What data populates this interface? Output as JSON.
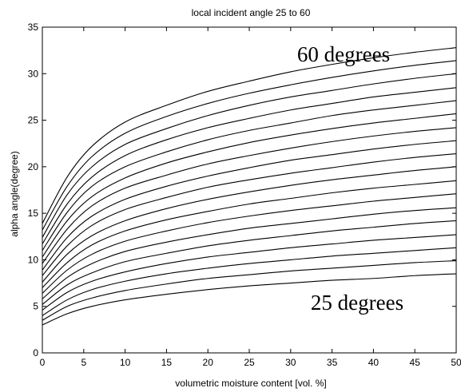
{
  "chart_data": {
    "type": "line",
    "title": "local incident angle 25 to 60",
    "xlabel": "volumetric moisture content [vol. %]",
    "ylabel": "alpha angle(degree)",
    "xlim": [
      0,
      50
    ],
    "ylim": [
      0,
      35
    ],
    "xticks": [
      0,
      5,
      10,
      15,
      20,
      25,
      30,
      35,
      40,
      45,
      50
    ],
    "yticks": [
      0,
      5,
      10,
      15,
      20,
      25,
      30,
      35
    ],
    "grid": false,
    "annotations": [
      {
        "text": "60 degrees",
        "x": 40,
        "y": 32.8
      },
      {
        "text": "25 degrees",
        "x": 40,
        "y": 5
      }
    ],
    "x": [
      0,
      3,
      6,
      10,
      15,
      20,
      25,
      30,
      35,
      40,
      45,
      50
    ],
    "series": [
      {
        "values": [
          3.0,
          4.2,
          5.0,
          5.7,
          6.3,
          6.8,
          7.2,
          7.5,
          7.8,
          8.0,
          8.3,
          8.5
        ]
      },
      {
        "values": [
          3.5,
          5.0,
          5.9,
          6.7,
          7.4,
          8.0,
          8.4,
          8.8,
          9.1,
          9.4,
          9.7,
          9.9
        ]
      },
      {
        "values": [
          4.0,
          5.7,
          6.8,
          7.7,
          8.5,
          9.1,
          9.6,
          10.0,
          10.4,
          10.7,
          11.0,
          11.3
        ]
      },
      {
        "values": [
          4.6,
          6.5,
          7.7,
          8.7,
          9.6,
          10.3,
          10.8,
          11.3,
          11.7,
          12.1,
          12.4,
          12.7
        ]
      },
      {
        "values": [
          5.2,
          7.3,
          8.6,
          9.8,
          10.7,
          11.5,
          12.1,
          12.6,
          13.1,
          13.5,
          13.9,
          14.2
        ]
      },
      {
        "values": [
          5.8,
          8.1,
          9.6,
          10.9,
          11.9,
          12.7,
          13.4,
          13.9,
          14.4,
          14.9,
          15.3,
          15.6
        ]
      },
      {
        "values": [
          6.4,
          8.9,
          10.6,
          12.0,
          13.1,
          14.0,
          14.7,
          15.3,
          15.8,
          16.3,
          16.7,
          17.1
        ]
      },
      {
        "values": [
          7.0,
          9.7,
          11.6,
          13.1,
          14.3,
          15.2,
          16.0,
          16.6,
          17.2,
          17.7,
          18.1,
          18.5
        ]
      },
      {
        "values": [
          7.6,
          10.6,
          12.6,
          14.2,
          15.5,
          16.5,
          17.3,
          18.0,
          18.6,
          19.1,
          19.6,
          20.0
        ]
      },
      {
        "values": [
          8.3,
          11.5,
          13.7,
          15.4,
          16.7,
          17.8,
          18.6,
          19.3,
          19.9,
          20.5,
          21.0,
          21.4
        ]
      },
      {
        "values": [
          8.9,
          12.4,
          14.7,
          16.5,
          17.9,
          19.0,
          19.9,
          20.7,
          21.3,
          21.9,
          22.4,
          22.8
        ]
      },
      {
        "values": [
          9.6,
          13.3,
          15.8,
          17.7,
          19.1,
          20.3,
          21.2,
          22.0,
          22.7,
          23.3,
          23.8,
          24.2
        ]
      },
      {
        "values": [
          10.3,
          14.2,
          16.8,
          18.8,
          20.4,
          21.6,
          22.6,
          23.4,
          24.1,
          24.7,
          25.2,
          25.7
        ]
      },
      {
        "values": [
          11.0,
          15.1,
          17.9,
          20.0,
          21.6,
          22.9,
          23.9,
          24.7,
          25.5,
          26.1,
          26.6,
          27.1
        ]
      },
      {
        "values": [
          11.7,
          16.0,
          18.9,
          21.2,
          22.9,
          24.2,
          25.2,
          26.1,
          26.8,
          27.5,
          28.0,
          28.5
        ]
      },
      {
        "values": [
          12.4,
          17.0,
          20.0,
          22.4,
          24.1,
          25.5,
          26.6,
          27.5,
          28.2,
          28.9,
          29.5,
          30.0
        ]
      },
      {
        "values": [
          13.2,
          17.9,
          21.1,
          23.6,
          25.4,
          26.8,
          27.9,
          28.8,
          29.6,
          30.3,
          30.9,
          31.4
        ]
      },
      {
        "values": [
          13.9,
          18.9,
          22.2,
          24.8,
          26.6,
          28.1,
          29.2,
          30.2,
          31.0,
          31.7,
          32.3,
          32.8
        ]
      }
    ]
  }
}
